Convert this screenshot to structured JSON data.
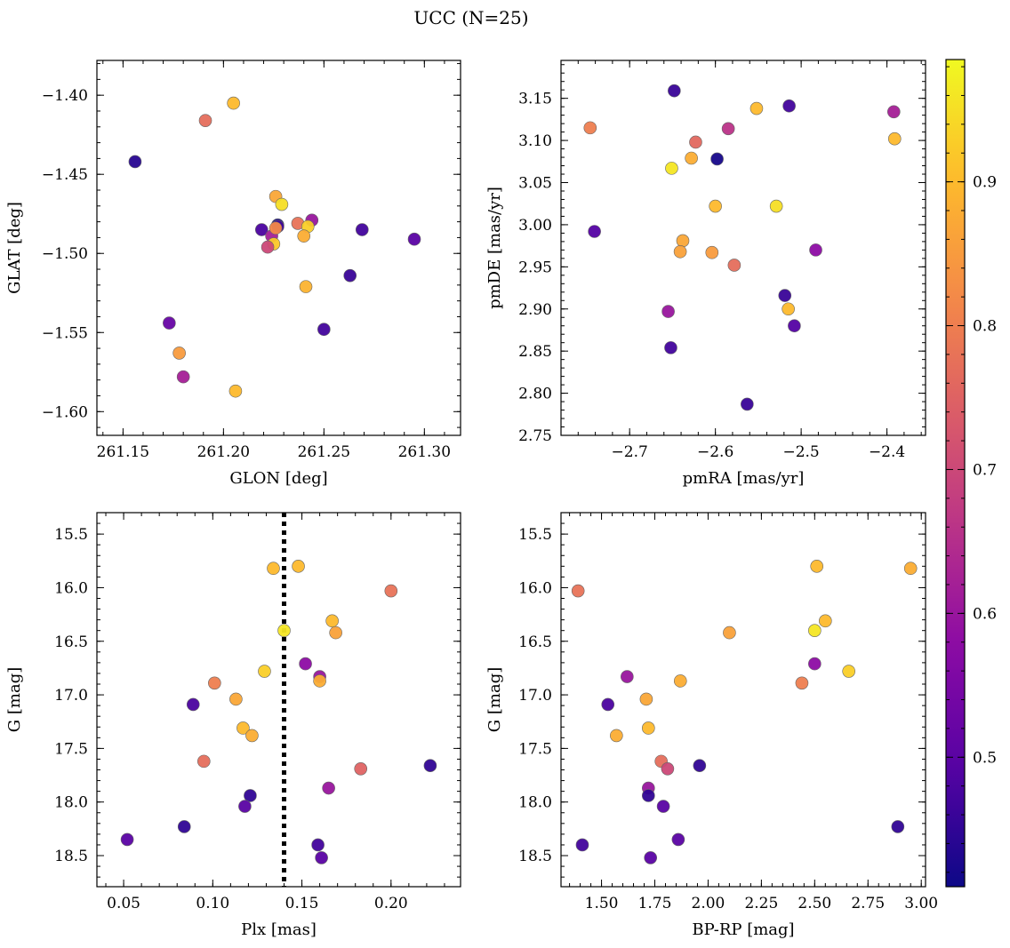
{
  "title": "UCC (N=25)",
  "colormap": "plasma",
  "colorbar": {
    "range": [
      0.41,
      0.985
    ],
    "ticks": [
      0.5,
      0.6,
      0.7,
      0.8,
      0.9
    ],
    "tick_labels": [
      "0.5",
      "0.6",
      "0.7",
      "0.8",
      "0.9"
    ]
  },
  "chart_data": [
    {
      "type": "scatter",
      "panel": "top-left",
      "xlabel": "GLON [deg]",
      "ylabel": "GLAT [deg]",
      "xlim": [
        261.137,
        261.318
      ],
      "ylim": [
        -1.615,
        -1.378
      ],
      "y_inverted": false,
      "xticks": [
        261.15,
        261.2,
        261.25,
        261.3
      ],
      "xtick_labels": [
        "261.15",
        "261.20",
        "261.25",
        "261.30"
      ],
      "yticks": [
        -1.4,
        -1.45,
        -1.5,
        -1.55,
        -1.6
      ],
      "ytick_labels": [
        "−1.40",
        "−1.45",
        "−1.50",
        "−1.55",
        "−1.60"
      ],
      "x": [
        261.205,
        261.191,
        261.156,
        261.226,
        261.229,
        261.227,
        261.244,
        261.237,
        261.227,
        261.242,
        261.219,
        261.224,
        261.24,
        261.225,
        261.222,
        261.269,
        261.295,
        261.241,
        261.263,
        261.173,
        261.25,
        261.178,
        261.18,
        261.206,
        261.226
      ],
      "y": [
        -1.405,
        -1.416,
        -1.442,
        -1.464,
        -1.469,
        -1.482,
        -1.479,
        -1.481,
        -1.483,
        -1.483,
        -1.485,
        -1.489,
        -1.489,
        -1.494,
        -1.496,
        -1.485,
        -1.491,
        -1.521,
        -1.514,
        -1.544,
        -1.548,
        -1.563,
        -1.578,
        -1.587,
        -1.484
      ],
      "c": [
        0.9,
        0.77,
        0.44,
        0.87,
        0.95,
        0.42,
        0.6,
        0.78,
        0.47,
        0.93,
        0.48,
        0.62,
        0.88,
        0.92,
        0.7,
        0.47,
        0.5,
        0.89,
        0.46,
        0.52,
        0.47,
        0.85,
        0.62,
        0.9,
        0.82
      ]
    },
    {
      "type": "scatter",
      "panel": "top-right",
      "xlabel": "pmRA [mas/yr]",
      "ylabel": "pmDE [mas/yr]",
      "xlim": [
        -2.78,
        -2.355
      ],
      "ylim": [
        2.75,
        3.195
      ],
      "y_inverted": false,
      "xticks": [
        -2.7,
        -2.6,
        -2.5,
        -2.4
      ],
      "xtick_labels": [
        "−2.7",
        "−2.6",
        "−2.5",
        "−2.4"
      ],
      "yticks": [
        2.75,
        2.8,
        2.85,
        2.9,
        2.95,
        3.0,
        3.05,
        3.1,
        3.15
      ],
      "ytick_labels": [
        "2.75",
        "2.80",
        "2.85",
        "2.90",
        "2.95",
        "3.00",
        "3.05",
        "3.10",
        "3.15"
      ],
      "x": [
        -2.648,
        -2.514,
        -2.746,
        -2.585,
        -2.623,
        -2.628,
        -2.598,
        -2.651,
        -2.552,
        -2.392,
        -2.391,
        -2.6,
        -2.529,
        -2.741,
        -2.638,
        -2.641,
        -2.604,
        -2.578,
        -2.483,
        -2.519,
        -2.515,
        -2.655,
        -2.508,
        -2.652,
        -2.563
      ],
      "y": [
        3.159,
        3.141,
        3.115,
        3.114,
        3.098,
        3.079,
        3.078,
        3.067,
        3.138,
        3.134,
        3.102,
        3.022,
        3.022,
        2.992,
        2.981,
        2.968,
        2.967,
        2.952,
        2.97,
        2.916,
        2.9,
        2.897,
        2.88,
        2.854,
        2.787
      ],
      "c": [
        0.46,
        0.47,
        0.8,
        0.66,
        0.76,
        0.88,
        0.42,
        0.96,
        0.9,
        0.62,
        0.9,
        0.9,
        0.95,
        0.49,
        0.87,
        0.86,
        0.85,
        0.77,
        0.58,
        0.46,
        0.9,
        0.6,
        0.49,
        0.47,
        0.46
      ]
    },
    {
      "type": "scatter",
      "panel": "bottom-left",
      "xlabel": "Plx [mas]",
      "ylabel": "G [mag]",
      "xlim": [
        0.035,
        0.239
      ],
      "ylim": [
        18.79,
        15.3
      ],
      "y_inverted": true,
      "vline": {
        "x": 0.14,
        "style": "dotted",
        "color": "#000000"
      },
      "xticks": [
        0.05,
        0.1,
        0.15,
        0.2
      ],
      "xtick_labels": [
        "0.05",
        "0.10",
        "0.15",
        "0.20"
      ],
      "yticks": [
        15.5,
        16.0,
        16.5,
        17.0,
        17.5,
        18.0,
        18.5
      ],
      "ytick_labels": [
        "15.5",
        "16.0",
        "16.5",
        "17.0",
        "17.5",
        "18.0",
        "18.5"
      ],
      "x": [
        0.134,
        0.148,
        0.2,
        0.167,
        0.169,
        0.14,
        0.129,
        0.152,
        0.16,
        0.16,
        0.101,
        0.113,
        0.089,
        0.117,
        0.122,
        0.095,
        0.183,
        0.222,
        0.165,
        0.121,
        0.118,
        0.084,
        0.052,
        0.159,
        0.161
      ],
      "y": [
        15.82,
        15.8,
        16.03,
        16.31,
        16.42,
        16.4,
        16.78,
        16.71,
        16.83,
        16.87,
        16.89,
        17.04,
        17.09,
        17.31,
        17.38,
        17.62,
        17.69,
        17.66,
        17.87,
        17.94,
        18.04,
        18.23,
        18.35,
        18.4,
        18.52
      ],
      "c": [
        0.9,
        0.9,
        0.78,
        0.9,
        0.86,
        0.96,
        0.93,
        0.58,
        0.6,
        0.88,
        0.8,
        0.87,
        0.48,
        0.9,
        0.88,
        0.77,
        0.75,
        0.45,
        0.6,
        0.45,
        0.5,
        0.45,
        0.5,
        0.47,
        0.5
      ]
    },
    {
      "type": "scatter",
      "panel": "bottom-right",
      "xlabel": "BP-RP [mag]",
      "ylabel": "G [mag]",
      "xlim": [
        1.31,
        3.02
      ],
      "ylim": [
        18.79,
        15.3
      ],
      "y_inverted": true,
      "xticks": [
        1.5,
        1.75,
        2.0,
        2.25,
        2.5,
        2.75,
        3.0
      ],
      "xtick_labels": [
        "1.50",
        "1.75",
        "2.00",
        "2.25",
        "2.50",
        "2.75",
        "3.00"
      ],
      "yticks": [
        15.5,
        16.0,
        16.5,
        17.0,
        17.5,
        18.0,
        18.5
      ],
      "ytick_labels": [
        "15.5",
        "16.0",
        "16.5",
        "17.0",
        "17.5",
        "18.0",
        "18.5"
      ],
      "x": [
        2.51,
        2.95,
        1.39,
        2.55,
        2.1,
        2.5,
        2.66,
        2.5,
        1.62,
        1.87,
        2.44,
        1.71,
        1.53,
        1.72,
        1.57,
        1.78,
        1.81,
        1.96,
        1.72,
        1.72,
        1.79,
        2.89,
        1.86,
        1.41,
        1.73
      ],
      "y": [
        15.8,
        15.82,
        16.03,
        16.31,
        16.42,
        16.4,
        16.78,
        16.71,
        16.83,
        16.87,
        16.89,
        17.04,
        17.09,
        17.31,
        17.38,
        17.62,
        17.69,
        17.66,
        17.87,
        17.94,
        18.04,
        18.23,
        18.35,
        18.4,
        18.52
      ],
      "c": [
        0.9,
        0.88,
        0.78,
        0.9,
        0.86,
        0.96,
        0.93,
        0.58,
        0.6,
        0.88,
        0.8,
        0.87,
        0.48,
        0.9,
        0.88,
        0.77,
        0.7,
        0.45,
        0.6,
        0.45,
        0.5,
        0.45,
        0.5,
        0.47,
        0.5
      ]
    }
  ]
}
